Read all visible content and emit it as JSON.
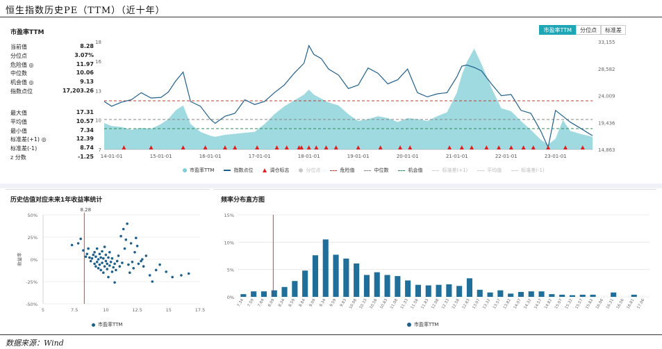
{
  "title": "恒生指数历史PE（TTM）（近十年）",
  "source": "数据来源：Wind",
  "top_panel": {
    "title": "市盈率TTM",
    "tabs": [
      {
        "label": "市盈率TTM",
        "active": true
      },
      {
        "label": "分位点",
        "active": false
      },
      {
        "label": "标准差",
        "active": false
      }
    ],
    "stats_a": [
      {
        "label": "当前值",
        "value": "8.28"
      },
      {
        "label": "分位点",
        "value": "3.07%"
      },
      {
        "label": "危险值 ◎",
        "value": "11.97"
      },
      {
        "label": "中位数",
        "value": "10.06"
      },
      {
        "label": "机会值 ◎",
        "value": "9.13"
      },
      {
        "label": "指数点位",
        "value": "17,203.26"
      }
    ],
    "stats_b": [
      {
        "label": "最大值",
        "value": "17.31"
      },
      {
        "label": "平均值",
        "value": "10.57"
      },
      {
        "label": "最小值",
        "value": "7.34"
      },
      {
        "label": "标准差(+1) ◎",
        "value": "12.39"
      },
      {
        "label": "标准差(-1)",
        "value": "8.74"
      },
      {
        "label": "z 分数",
        "value": "-1.25"
      }
    ],
    "legend": [
      {
        "label": "市盈率TTM",
        "kind": "dot",
        "color": "#7fcdd6",
        "muted": false
      },
      {
        "label": "指数点位",
        "kind": "line",
        "color": "#1f5f8b",
        "muted": false
      },
      {
        "label": "调仓标志",
        "kind": "triangle",
        "color": "#e02020",
        "muted": false
      },
      {
        "label": "分位点",
        "kind": "dot",
        "color": "#c8c8c8",
        "muted": true
      },
      {
        "label": "危险值",
        "kind": "dash",
        "color": "#c0392b",
        "muted": false
      },
      {
        "label": "中位数",
        "kind": "dash",
        "color": "#888888",
        "muted": false
      },
      {
        "label": "机会值",
        "kind": "dash",
        "color": "#2e8b57",
        "muted": false
      },
      {
        "label": "标准差(+1)",
        "kind": "dash",
        "color": "#cccccc",
        "muted": true
      },
      {
        "label": "平均值",
        "kind": "dash",
        "color": "#cccccc",
        "muted": true
      },
      {
        "label": "标准差(-1)",
        "kind": "dash",
        "color": "#cccccc",
        "muted": true
      }
    ]
  },
  "scatter_panel": {
    "title": "历史估值对应未来1年收益率统计",
    "legend": "市盈率TTM"
  },
  "hist_panel": {
    "title": "频率分布直方图",
    "legend": "市盈率TTM"
  },
  "chart_data": [
    {
      "type": "area",
      "title": "市盈率TTM",
      "x_ticks": [
        "14-01-01",
        "15-01-01",
        "16-01-01",
        "17-01-01",
        "18-01-01",
        "19-01-01",
        "20-01-01",
        "21-01-01",
        "22-01-01",
        "23-01-01"
      ],
      "x_range": [
        2013.85,
        2023.75
      ],
      "y_left_ticks": [
        "7",
        "10",
        "13",
        "16",
        "18"
      ],
      "y_left_range": [
        7,
        18
      ],
      "y_right_ticks": [
        "14,863",
        "19,436",
        "24,009",
        "28,582",
        "33,155"
      ],
      "y_right_range": [
        14863,
        33155
      ],
      "reference_lines": {
        "danger": 11.97,
        "median": 10.06,
        "opportunity": 9.13
      },
      "pe_series": {
        "name": "市盈率TTM",
        "x": [
          2013.85,
          2014.0,
          2014.2,
          2014.4,
          2014.6,
          2014.8,
          2015.0,
          2015.15,
          2015.3,
          2015.45,
          2015.6,
          2015.8,
          2016.0,
          2016.1,
          2016.3,
          2016.5,
          2016.7,
          2016.9,
          2017.1,
          2017.3,
          2017.5,
          2017.7,
          2017.9,
          2018.0,
          2018.1,
          2018.25,
          2018.4,
          2018.6,
          2018.8,
          2019.0,
          2019.2,
          2019.4,
          2019.6,
          2019.8,
          2020.0,
          2020.2,
          2020.4,
          2020.6,
          2020.8,
          2021.0,
          2021.1,
          2021.2,
          2021.35,
          2021.5,
          2021.7,
          2021.9,
          2022.1,
          2022.3,
          2022.5,
          2022.7,
          2022.85,
          2023.0,
          2023.15,
          2023.3,
          2023.5,
          2023.75
        ],
        "y": [
          9.7,
          9.4,
          9.3,
          9.0,
          9.2,
          9.1,
          9.6,
          10.1,
          11.0,
          11.5,
          9.6,
          8.8,
          8.4,
          8.3,
          8.5,
          8.6,
          8.7,
          8.8,
          9.6,
          10.6,
          11.4,
          12.0,
          12.6,
          13.1,
          12.6,
          12.2,
          11.8,
          11.5,
          10.6,
          9.9,
          10.1,
          10.4,
          10.2,
          9.8,
          10.2,
          10.1,
          9.9,
          10.4,
          10.8,
          12.8,
          14.6,
          15.9,
          17.3,
          15.7,
          13.3,
          11.2,
          10.9,
          9.9,
          9.0,
          8.0,
          7.5,
          8.1,
          10.0,
          8.9,
          8.6,
          8.3
        ]
      },
      "index_series": {
        "name": "指数点位",
        "x": [
          2013.85,
          2014.0,
          2014.2,
          2014.4,
          2014.6,
          2014.8,
          2015.0,
          2015.15,
          2015.3,
          2015.45,
          2015.6,
          2015.8,
          2016.0,
          2016.1,
          2016.3,
          2016.5,
          2016.7,
          2016.9,
          2017.1,
          2017.3,
          2017.5,
          2017.7,
          2017.9,
          2018.0,
          2018.1,
          2018.25,
          2018.4,
          2018.6,
          2018.8,
          2019.0,
          2019.2,
          2019.4,
          2019.6,
          2019.8,
          2020.0,
          2020.2,
          2020.4,
          2020.6,
          2020.8,
          2021.0,
          2021.1,
          2021.2,
          2021.35,
          2021.5,
          2021.7,
          2021.9,
          2022.1,
          2022.3,
          2022.5,
          2022.7,
          2022.85,
          2023.0,
          2023.15,
          2023.3,
          2023.5,
          2023.75
        ],
        "y": [
          23000,
          22200,
          22900,
          23300,
          24500,
          23600,
          23700,
          24600,
          26500,
          28000,
          23000,
          22200,
          20000,
          19300,
          20500,
          21000,
          23300,
          22500,
          23000,
          24500,
          25800,
          27800,
          29500,
          32500,
          31000,
          30300,
          28500,
          27500,
          25200,
          25800,
          28700,
          27800,
          26000,
          26700,
          28500,
          24500,
          23800,
          24300,
          24500,
          27200,
          29000,
          29200,
          28800,
          28200,
          26000,
          24000,
          24200,
          21500,
          21000,
          18000,
          15200,
          21500,
          20500,
          19500,
          18500,
          17203
        ]
      },
      "rebalance_marks_x": [
        2014.25,
        2014.8,
        2015.45,
        2015.9,
        2016.3,
        2016.5,
        2016.95,
        2017.35,
        2017.55,
        2017.8,
        2017.85,
        2018.0,
        2018.15,
        2018.35,
        2018.55,
        2019.0,
        2019.45,
        2019.85,
        2020.05,
        2020.85,
        2021.1,
        2021.3,
        2021.6,
        2021.85,
        2022.1,
        2022.35,
        2022.55,
        2022.85,
        2023.2,
        2023.55
      ]
    },
    {
      "type": "scatter",
      "title": "历史估值对应未来1年收益率统计",
      "xlabel": "",
      "ylabel": "收益率",
      "x_ticks": [
        "5",
        "7.5",
        "10",
        "12.5",
        "15",
        "17.5"
      ],
      "x_range": [
        5,
        17.5
      ],
      "y_ticks": [
        "50%",
        "25%",
        "0%",
        "-25%",
        "-50%"
      ],
      "y_range": [
        -50,
        50
      ],
      "current_marker": {
        "x": 8.28,
        "label": "8.28"
      },
      "series": [
        {
          "name": "市盈率TTM",
          "points": [
            [
              7.3,
              16
            ],
            [
              7.8,
              18
            ],
            [
              8.0,
              23
            ],
            [
              8.2,
              10
            ],
            [
              8.4,
              3
            ],
            [
              8.5,
              6
            ],
            [
              8.6,
              12
            ],
            [
              8.7,
              2
            ],
            [
              8.8,
              -2
            ],
            [
              8.9,
              1
            ],
            [
              9.0,
              5
            ],
            [
              9.1,
              -5
            ],
            [
              9.1,
              8
            ],
            [
              9.2,
              -8
            ],
            [
              9.2,
              3
            ],
            [
              9.3,
              12
            ],
            [
              9.3,
              -3
            ],
            [
              9.4,
              0
            ],
            [
              9.4,
              -10
            ],
            [
              9.5,
              6
            ],
            [
              9.5,
              -6
            ],
            [
              9.6,
              2
            ],
            [
              9.6,
              -12
            ],
            [
              9.7,
              -4
            ],
            [
              9.7,
              9
            ],
            [
              9.8,
              -15
            ],
            [
              9.8,
              1
            ],
            [
              9.9,
              -8
            ],
            [
              9.9,
              14
            ],
            [
              10.0,
              -2
            ],
            [
              10.0,
              5
            ],
            [
              10.1,
              -11
            ],
            [
              10.1,
              -5
            ],
            [
              10.2,
              2
            ],
            [
              10.2,
              -20
            ],
            [
              10.3,
              -7
            ],
            [
              10.3,
              8
            ],
            [
              10.4,
              -3
            ],
            [
              10.5,
              -14
            ],
            [
              10.5,
              1
            ],
            [
              10.6,
              -9
            ],
            [
              10.7,
              -5
            ],
            [
              10.7,
              -26
            ],
            [
              10.8,
              -12
            ],
            [
              10.9,
              -2
            ],
            [
              11.0,
              4
            ],
            [
              11.1,
              -8
            ],
            [
              11.2,
              26
            ],
            [
              11.3,
              -4
            ],
            [
              11.4,
              34
            ],
            [
              11.5,
              12
            ],
            [
              11.6,
              22
            ],
            [
              11.7,
              40
            ],
            [
              11.8,
              -6
            ],
            [
              11.9,
              -15
            ],
            [
              12.0,
              18
            ],
            [
              12.1,
              -3
            ],
            [
              12.2,
              -10
            ],
            [
              12.3,
              8
            ],
            [
              12.4,
              24
            ],
            [
              12.5,
              15
            ],
            [
              12.6,
              -5
            ],
            [
              12.8,
              -2
            ],
            [
              12.9,
              0
            ],
            [
              13.0,
              -8
            ],
            [
              13.2,
              4
            ],
            [
              13.5,
              -18
            ],
            [
              13.7,
              -25
            ],
            [
              14.0,
              -12
            ],
            [
              14.3,
              -6
            ],
            [
              14.8,
              -14
            ],
            [
              15.3,
              -20
            ],
            [
              16.0,
              -18
            ],
            [
              16.6,
              -16
            ]
          ]
        }
      ]
    },
    {
      "type": "bar",
      "title": "频率分布直方图",
      "y_ticks": [
        "15%",
        "10%",
        "5%",
        "0%"
      ],
      "ylim": [
        0,
        15
      ],
      "current_marker": {
        "category": "8.09"
      },
      "categories": [
        "7.34",
        "7.59",
        "7.84",
        "8.09",
        "8.34",
        "8.59",
        "8.84",
        "9.09",
        "9.34",
        "9.59",
        "9.83",
        "10.08",
        "10.33",
        "10.58",
        "10.83",
        "11.08",
        "11.33",
        "11.58",
        "11.83",
        "12.08",
        "12.33",
        "12.58",
        "12.83",
        "13.07",
        "13.32",
        "13.57",
        "13.82",
        "14.07",
        "14.32",
        "14.57",
        "14.82",
        "15.07",
        "15.32",
        "15.57",
        "15.82",
        "16.06",
        "16.31",
        "16.56",
        "16.81",
        "17.06"
      ],
      "series": [
        {
          "name": "市盈率TTM",
          "values": [
            0.5,
            1.0,
            1.0,
            1.2,
            1.8,
            2.9,
            4.8,
            7.6,
            10.5,
            7.7,
            7.0,
            6.1,
            4.0,
            4.5,
            4.0,
            3.8,
            3.0,
            2.2,
            2.1,
            2.2,
            2.3,
            2.0,
            3.4,
            1.3,
            0.8,
            1.2,
            0.6,
            0.9,
            1.0,
            1.0,
            0.5,
            0.4,
            0.3,
            0.4,
            0.4,
            0,
            0.8,
            0,
            0.4,
            0
          ]
        }
      ]
    }
  ]
}
